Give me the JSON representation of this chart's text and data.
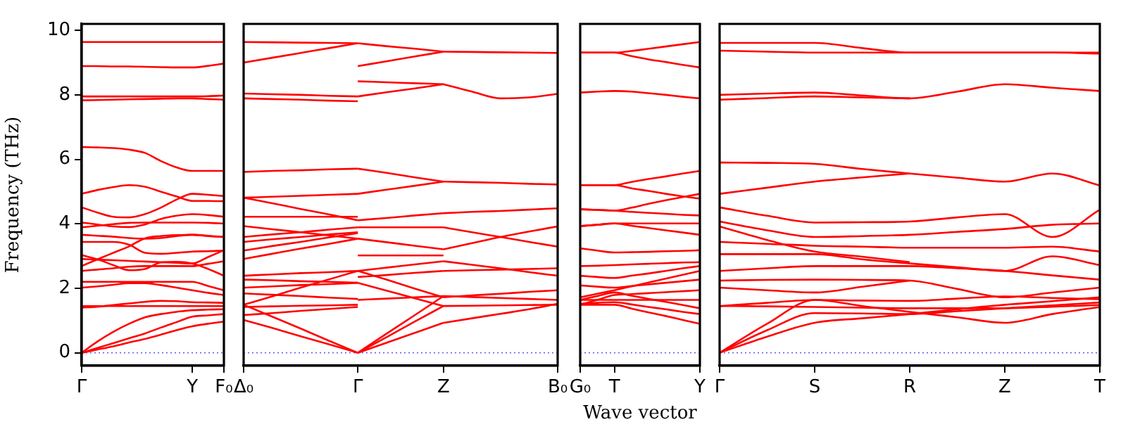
{
  "chart_data": [
    {
      "type": "line",
      "ylabel": "Frequency (THz)",
      "marker": "none",
      "categories": [
        "Γ",
        null,
        null,
        null,
        null,
        null,
        null,
        "Y",
        null,
        "F₀"
      ],
      "ylim": [
        -0.4,
        10.2
      ],
      "yticks": [
        0,
        2,
        4,
        6,
        8,
        10
      ],
      "ref_lines": [
        {
          "axis": "y",
          "value": 0,
          "color": "#6666ff",
          "line_style": "dotted"
        }
      ],
      "series": [
        {
          "color": "#ff0000",
          "values": [
            9.64,
            9.64,
            9.64,
            9.64,
            9.64,
            9.64,
            9.64,
            9.64,
            9.64,
            9.64
          ]
        },
        {
          "color": "#ff0000",
          "values": [
            8.89,
            8.89,
            8.88,
            8.88,
            8.87,
            8.86,
            8.85,
            8.85,
            8.9,
            8.97
          ]
        },
        {
          "color": "#ff0000",
          "values": [
            7.95,
            7.95,
            7.95,
            7.95,
            7.95,
            7.95,
            7.95,
            7.95,
            7.96,
            7.98
          ]
        },
        {
          "color": "#ff0000",
          "values": [
            7.83,
            7.84,
            7.85,
            7.86,
            7.87,
            7.88,
            7.89,
            7.89,
            7.87,
            7.85
          ]
        },
        {
          "color": "#ff0000",
          "values": [
            6.38,
            6.37,
            6.35,
            6.3,
            6.2,
            5.95,
            5.75,
            5.64,
            5.64,
            5.64
          ]
        },
        {
          "color": "#ff0000",
          "values": [
            4.93,
            5.05,
            5.14,
            5.2,
            5.15,
            5.0,
            4.85,
            4.71,
            4.71,
            4.7
          ]
        },
        {
          "color": "#ff0000",
          "values": [
            4.51,
            4.35,
            4.22,
            4.2,
            4.3,
            4.5,
            4.75,
            4.93,
            4.9,
            4.86
          ]
        },
        {
          "color": "#ff0000",
          "values": [
            4.04,
            3.98,
            3.92,
            3.9,
            3.98,
            4.15,
            4.25,
            4.3,
            4.27,
            4.22
          ]
        },
        {
          "color": "#ff0000",
          "values": [
            3.89,
            3.94,
            3.99,
            4.03,
            4.04,
            4.04,
            4.04,
            4.04,
            4.03,
            4.01
          ]
        },
        {
          "color": "#ff0000",
          "values": [
            3.66,
            3.63,
            3.6,
            3.56,
            3.54,
            3.56,
            3.62,
            3.66,
            3.63,
            3.59
          ]
        },
        {
          "color": "#ff0000",
          "values": [
            3.44,
            3.44,
            3.44,
            3.35,
            3.1,
            3.07,
            3.1,
            3.14,
            3.15,
            3.17
          ]
        },
        {
          "color": "#ff0000",
          "values": [
            3.03,
            2.9,
            2.72,
            2.56,
            2.6,
            2.8,
            2.82,
            2.77,
            2.6,
            2.39
          ]
        },
        {
          "color": "#ff0000",
          "values": [
            2.91,
            2.89,
            2.87,
            2.85,
            2.83,
            2.81,
            2.79,
            2.77,
            2.97,
            3.18
          ]
        },
        {
          "color": "#ff0000",
          "values": [
            2.69,
            2.9,
            3.1,
            3.3,
            3.55,
            3.62,
            3.65,
            3.66,
            3.62,
            3.59
          ]
        },
        {
          "color": "#ff0000",
          "values": [
            2.54,
            2.58,
            2.62,
            2.67,
            2.69,
            2.69,
            2.69,
            2.69,
            2.76,
            2.84
          ]
        },
        {
          "color": "#ff0000",
          "values": [
            2.2,
            2.2,
            2.2,
            2.2,
            2.2,
            2.2,
            2.2,
            2.2,
            2.07,
            1.94
          ]
        },
        {
          "color": "#ff0000",
          "values": [
            2.02,
            2.06,
            2.11,
            2.16,
            2.16,
            2.1,
            2.02,
            1.94,
            1.86,
            1.79
          ]
        },
        {
          "color": "#ff0000",
          "values": [
            1.45,
            1.45,
            1.45,
            1.45,
            1.45,
            1.45,
            1.45,
            1.45,
            1.45,
            1.45
          ]
        },
        {
          "color": "#ff0000",
          "values": [
            1.4,
            1.43,
            1.48,
            1.53,
            1.58,
            1.61,
            1.6,
            1.57,
            1.56,
            1.55
          ]
        },
        {
          "color": "#ff0000",
          "values": [
            0,
            0.35,
            0.65,
            0.9,
            1.1,
            1.2,
            1.27,
            1.32,
            1.34,
            1.35
          ]
        },
        {
          "color": "#ff0000",
          "values": [
            0,
            0.15,
            0.3,
            0.45,
            0.6,
            0.78,
            0.95,
            1.12,
            1.16,
            1.2
          ]
        },
        {
          "color": "#ff0000",
          "values": [
            0,
            0.1,
            0.2,
            0.32,
            0.43,
            0.56,
            0.7,
            0.82,
            0.9,
            0.97
          ]
        }
      ]
    },
    {
      "type": "line",
      "marker": "none",
      "tick_labels": "x",
      "categories": [
        "Δ₀",
        null,
        null,
        null,
        "Γ",
        null,
        null,
        "Z",
        null,
        null,
        null,
        "B₀"
      ],
      "ylim": [
        -0.4,
        10.2
      ],
      "ref_lines": [
        {
          "axis": "y",
          "value": 0,
          "color": "#6666ff",
          "line_style": "dotted"
        }
      ],
      "series": [
        {
          "color": "#ff0000",
          "values": [
            9.64,
            9.63,
            9.62,
            9.61,
            9.6,
            null,
            null,
            null,
            null,
            null,
            null,
            null
          ]
        },
        {
          "color": "#ff0000",
          "values": [
            9.0,
            9.15,
            9.3,
            9.45,
            9.6,
            null,
            null,
            null,
            null,
            null,
            null,
            null
          ]
        },
        {
          "color": "#ff0000",
          "values": [
            8.04,
            8.02,
            8.0,
            7.97,
            7.95,
            null,
            null,
            null,
            null,
            null,
            null,
            null
          ]
        },
        {
          "color": "#ff0000",
          "values": [
            7.89,
            7.87,
            7.85,
            7.82,
            7.8,
            null,
            null,
            null,
            null,
            null,
            null,
            null
          ]
        },
        {
          "color": "#ff0000",
          "values": [
            5.61,
            5.64,
            5.66,
            5.69,
            5.71,
            null,
            null,
            null,
            null,
            null,
            null,
            null
          ]
        },
        {
          "color": "#ff0000",
          "values": [
            4.81,
            4.84,
            4.87,
            4.9,
            4.93,
            null,
            null,
            null,
            null,
            null,
            null,
            null
          ]
        },
        {
          "color": "#ff0000",
          "values": [
            4.81,
            4.64,
            4.46,
            4.29,
            4.11,
            null,
            null,
            null,
            null,
            null,
            null,
            null
          ]
        },
        {
          "color": "#ff0000",
          "values": [
            4.22,
            4.22,
            4.22,
            4.22,
            4.22,
            null,
            null,
            null,
            null,
            null,
            null,
            null
          ]
        },
        {
          "color": "#ff0000",
          "values": [
            3.93,
            3.83,
            3.74,
            3.64,
            3.54,
            null,
            null,
            null,
            null,
            null,
            null,
            null
          ]
        },
        {
          "color": "#ff0000",
          "values": [
            3.59,
            3.67,
            3.74,
            3.82,
            3.89,
            null,
            null,
            null,
            null,
            null,
            null,
            null
          ]
        },
        {
          "color": "#ff0000",
          "values": [
            3.44,
            3.52,
            3.59,
            3.67,
            3.74,
            null,
            null,
            null,
            null,
            null,
            null,
            null
          ]
        },
        {
          "color": "#ff0000",
          "values": [
            3.17,
            3.31,
            3.44,
            3.58,
            3.71,
            null,
            null,
            null,
            null,
            null,
            null,
            null
          ]
        },
        {
          "color": "#ff0000",
          "values": [
            2.91,
            3.07,
            3.23,
            3.38,
            3.54,
            null,
            null,
            null,
            null,
            null,
            null,
            null
          ]
        },
        {
          "color": "#ff0000",
          "values": [
            2.39,
            2.43,
            2.47,
            2.5,
            2.54,
            null,
            null,
            null,
            null,
            null,
            null,
            null
          ]
        },
        {
          "color": "#ff0000",
          "values": [
            2.27,
            2.25,
            2.22,
            2.2,
            2.17,
            null,
            null,
            null,
            null,
            null,
            null,
            null
          ]
        },
        {
          "color": "#ff0000",
          "values": [
            2.02,
            2.06,
            2.1,
            2.13,
            2.17,
            null,
            null,
            null,
            null,
            null,
            null,
            null
          ]
        },
        {
          "color": "#ff0000",
          "values": [
            1.84,
            1.8,
            1.76,
            1.71,
            1.67,
            null,
            null,
            null,
            null,
            null,
            null,
            null
          ]
        },
        {
          "color": "#ff0000",
          "values": [
            1.49,
            1.75,
            2.02,
            2.28,
            2.54,
            null,
            null,
            null,
            null,
            null,
            null,
            null
          ]
        },
        {
          "color": "#ff0000",
          "values": [
            1.42,
            1.44,
            1.46,
            1.47,
            1.49,
            null,
            null,
            null,
            null,
            null,
            null,
            null
          ]
        },
        {
          "color": "#ff0000",
          "values": [
            1.17,
            1.23,
            1.3,
            1.36,
            1.42,
            null,
            null,
            null,
            null,
            null,
            null,
            null
          ]
        },
        {
          "color": "#ff0000",
          "values": [
            1.02,
            0.77,
            0.51,
            0.26,
            0,
            null,
            null,
            null,
            null,
            null,
            null,
            null
          ]
        },
        {
          "color": "#ff0000",
          "values": [
            1.49,
            1.12,
            0.75,
            0.37,
            0,
            null,
            null,
            null,
            null,
            null,
            null,
            null
          ]
        },
        {
          "color": "#ff0000",
          "values": [
            null,
            null,
            null,
            null,
            9.6,
            9.51,
            9.43,
            9.34,
            null,
            null,
            null,
            null
          ]
        },
        {
          "color": "#ff0000",
          "values": [
            null,
            null,
            null,
            null,
            8.89,
            9.04,
            9.19,
            9.34,
            null,
            null,
            null,
            null
          ]
        },
        {
          "color": "#ff0000",
          "values": [
            null,
            null,
            null,
            null,
            8.42,
            8.39,
            8.36,
            8.33,
            null,
            null,
            null,
            null
          ]
        },
        {
          "color": "#ff0000",
          "values": [
            null,
            null,
            null,
            null,
            7.95,
            8.08,
            8.2,
            8.33,
            null,
            null,
            null,
            null
          ]
        },
        {
          "color": "#ff0000",
          "values": [
            null,
            null,
            null,
            null,
            5.71,
            5.58,
            5.44,
            5.31,
            null,
            null,
            null,
            null
          ]
        },
        {
          "color": "#ff0000",
          "values": [
            null,
            null,
            null,
            null,
            4.93,
            5.06,
            5.18,
            5.31,
            null,
            null,
            null,
            null
          ]
        },
        {
          "color": "#ff0000",
          "values": [
            null,
            null,
            null,
            null,
            4.11,
            4.18,
            4.26,
            4.33,
            null,
            null,
            null,
            null
          ]
        },
        {
          "color": "#ff0000",
          "values": [
            null,
            null,
            null,
            null,
            3.89,
            3.89,
            3.89,
            3.89,
            null,
            null,
            null,
            null
          ]
        },
        {
          "color": "#ff0000",
          "values": [
            null,
            null,
            null,
            null,
            3.54,
            3.43,
            3.32,
            3.21,
            null,
            null,
            null,
            null
          ]
        },
        {
          "color": "#ff0000",
          "values": [
            null,
            null,
            null,
            null,
            3.02,
            3.02,
            3.02,
            3.02,
            null,
            null,
            null,
            null
          ]
        },
        {
          "color": "#ff0000",
          "values": [
            null,
            null,
            null,
            null,
            2.54,
            2.64,
            2.74,
            2.84,
            null,
            null,
            null,
            null
          ]
        },
        {
          "color": "#ff0000",
          "values": [
            null,
            null,
            null,
            null,
            2.35,
            2.41,
            2.48,
            2.54,
            null,
            null,
            null,
            null
          ]
        },
        {
          "color": "#ff0000",
          "values": [
            null,
            null,
            null,
            null,
            1.64,
            1.68,
            1.72,
            1.76,
            null,
            null,
            null,
            null
          ]
        },
        {
          "color": "#ff0000",
          "values": [
            null,
            null,
            null,
            null,
            0,
            0.59,
            1.17,
            1.76,
            null,
            null,
            null,
            null
          ]
        },
        {
          "color": "#ff0000",
          "values": [
            null,
            null,
            null,
            null,
            0,
            0.48,
            0.97,
            1.45,
            null,
            null,
            null,
            null
          ]
        },
        {
          "color": "#ff0000",
          "values": [
            null,
            null,
            null,
            null,
            0,
            0.31,
            0.62,
            0.93,
            null,
            null,
            null,
            null
          ]
        },
        {
          "color": "#ff0000",
          "values": [
            null,
            null,
            null,
            null,
            2.54,
            2.27,
            1.99,
            1.72,
            null,
            null,
            null,
            null
          ]
        },
        {
          "color": "#ff0000",
          "values": [
            null,
            null,
            null,
            null,
            2.17,
            1.93,
            1.69,
            1.45,
            null,
            null,
            null,
            null
          ]
        },
        {
          "color": "#ff0000",
          "values": [
            null,
            null,
            null,
            null,
            null,
            null,
            null,
            9.34,
            9.33,
            9.32,
            9.31,
            9.3
          ]
        },
        {
          "color": "#ff0000",
          "values": [
            null,
            null,
            null,
            null,
            null,
            null,
            null,
            8.33,
            8.1,
            7.89,
            7.92,
            8.03
          ]
        },
        {
          "color": "#ff0000",
          "values": [
            null,
            null,
            null,
            null,
            null,
            null,
            null,
            5.31,
            5.29,
            5.27,
            5.24,
            5.22
          ]
        },
        {
          "color": "#ff0000",
          "values": [
            null,
            null,
            null,
            null,
            null,
            null,
            null,
            4.33,
            4.37,
            4.4,
            4.44,
            4.48
          ]
        },
        {
          "color": "#ff0000",
          "values": [
            null,
            null,
            null,
            null,
            null,
            null,
            null,
            3.89,
            3.74,
            3.59,
            3.44,
            3.29
          ]
        },
        {
          "color": "#ff0000",
          "values": [
            null,
            null,
            null,
            null,
            null,
            null,
            null,
            3.21,
            3.4,
            3.59,
            3.76,
            3.92
          ]
        },
        {
          "color": "#ff0000",
          "values": [
            null,
            null,
            null,
            null,
            null,
            null,
            null,
            2.84,
            2.73,
            2.62,
            2.5,
            2.39
          ]
        },
        {
          "color": "#ff0000",
          "values": [
            null,
            null,
            null,
            null,
            null,
            null,
            null,
            2.54,
            2.56,
            2.58,
            2.6,
            2.62
          ]
        },
        {
          "color": "#ff0000",
          "values": [
            null,
            null,
            null,
            null,
            null,
            null,
            null,
            1.76,
            1.73,
            1.7,
            1.67,
            1.64
          ]
        },
        {
          "color": "#ff0000",
          "values": [
            null,
            null,
            null,
            null,
            null,
            null,
            null,
            1.45,
            1.46,
            1.47,
            1.48,
            1.49
          ]
        },
        {
          "color": "#ff0000",
          "values": [
            null,
            null,
            null,
            null,
            null,
            null,
            null,
            0.93,
            1.07,
            1.21,
            1.35,
            1.52
          ]
        },
        {
          "color": "#ff0000",
          "values": [
            null,
            null,
            null,
            null,
            null,
            null,
            null,
            1.72,
            1.78,
            1.83,
            1.89,
            1.94
          ]
        }
      ]
    },
    {
      "type": "line",
      "marker": "none",
      "tick_labels": "x",
      "xlabel": "Wave vector",
      "categories": [
        "G₀",
        null,
        "T",
        null,
        null,
        null,
        null,
        "Y"
      ],
      "ylim": [
        -0.4,
        10.2
      ],
      "ref_lines": [
        {
          "axis": "y",
          "value": 0,
          "color": "#6666ff",
          "line_style": "dotted"
        }
      ],
      "series": [
        {
          "color": "#ff0000",
          "values": [
            9.31,
            9.31,
            9.31,
            9.36,
            9.43,
            9.5,
            9.57,
            9.64
          ]
        },
        {
          "color": "#ff0000",
          "values": [
            9.31,
            9.31,
            9.31,
            9.2,
            9.1,
            9.02,
            8.93,
            8.85
          ]
        },
        {
          "color": "#ff0000",
          "values": [
            8.07,
            8.1,
            8.12,
            8.1,
            8.05,
            8.0,
            7.94,
            7.89
          ]
        },
        {
          "color": "#ff0000",
          "values": [
            5.2,
            5.2,
            5.2,
            5.3,
            5.39,
            5.47,
            5.56,
            5.64
          ]
        },
        {
          "color": "#ff0000",
          "values": [
            5.2,
            5.2,
            5.2,
            5.1,
            5.02,
            4.93,
            4.85,
            4.78
          ]
        },
        {
          "color": "#ff0000",
          "values": [
            4.45,
            4.43,
            4.41,
            4.5,
            4.62,
            4.73,
            4.83,
            4.93
          ]
        },
        {
          "color": "#ff0000",
          "values": [
            4.45,
            4.43,
            4.41,
            4.37,
            4.34,
            4.31,
            4.28,
            4.26
          ]
        },
        {
          "color": "#ff0000",
          "values": [
            3.93,
            3.97,
            4.01,
            3.94,
            3.87,
            3.8,
            3.73,
            3.66
          ]
        },
        {
          "color": "#ff0000",
          "values": [
            3.93,
            3.97,
            4.01,
            4.01,
            4.01,
            4.01,
            4.01,
            4.01
          ]
        },
        {
          "color": "#ff0000",
          "values": [
            3.24,
            3.17,
            3.11,
            3.12,
            3.13,
            3.15,
            3.16,
            3.18
          ]
        },
        {
          "color": "#ff0000",
          "values": [
            2.69,
            2.7,
            2.72,
            2.74,
            2.76,
            2.78,
            2.8,
            2.81
          ]
        },
        {
          "color": "#ff0000",
          "values": [
            2.39,
            2.35,
            2.32,
            2.39,
            2.46,
            2.54,
            2.62,
            2.69
          ]
        },
        {
          "color": "#ff0000",
          "values": [
            2.09,
            2.05,
            2.02,
            2.07,
            2.12,
            2.17,
            2.22,
            2.27
          ]
        },
        {
          "color": "#ff0000",
          "values": [
            1.72,
            1.83,
            1.94,
            2.06,
            2.18,
            2.3,
            2.42,
            2.54
          ]
        },
        {
          "color": "#ff0000",
          "values": [
            1.64,
            1.76,
            1.87,
            1.77,
            1.67,
            1.58,
            1.48,
            1.38
          ]
        },
        {
          "color": "#ff0000",
          "values": [
            1.52,
            1.55,
            1.57,
            1.5,
            1.42,
            1.35,
            1.27,
            1.2
          ]
        },
        {
          "color": "#ff0000",
          "values": [
            1.49,
            1.49,
            1.49,
            1.37,
            1.25,
            1.14,
            1.02,
            0.9
          ]
        },
        {
          "color": "#ff0000",
          "values": [
            1.49,
            1.64,
            1.79,
            1.82,
            1.85,
            1.88,
            1.91,
            1.94
          ]
        },
        {
          "color": "#ff0000",
          "values": [
            1.64,
            1.64,
            1.64,
            1.64,
            1.64,
            1.64,
            1.64,
            1.64
          ]
        }
      ]
    },
    {
      "type": "line",
      "marker": "none",
      "tick_labels": "x",
      "categories": [
        "Γ",
        null,
        "S",
        null,
        "R",
        null,
        "Z",
        null,
        "T"
      ],
      "ylim": [
        -0.4,
        10.2
      ],
      "ref_lines": [
        {
          "axis": "y",
          "value": 0,
          "color": "#6666ff",
          "line_style": "dotted"
        }
      ],
      "series": [
        {
          "color": "#ff0000",
          "values": [
            9.61,
            9.61,
            9.61,
            9.45,
            9.31,
            9.31,
            9.31,
            9.31,
            9.31
          ]
        },
        {
          "color": "#ff0000",
          "values": [
            9.37,
            9.34,
            9.31,
            9.31,
            9.31,
            9.31,
            9.31,
            9.31,
            9.28
          ]
        },
        {
          "color": "#ff0000",
          "values": [
            8.0,
            8.04,
            8.07,
            7.98,
            7.89,
            8.1,
            8.33,
            8.22,
            8.12
          ]
        },
        {
          "color": "#ff0000",
          "values": [
            7.85,
            7.9,
            7.95,
            7.92,
            7.89,
            null,
            null,
            null,
            null
          ]
        },
        {
          "color": "#ff0000",
          "values": [
            5.9,
            5.89,
            5.86,
            5.7,
            5.56,
            5.43,
            5.31,
            5.56,
            5.19
          ]
        },
        {
          "color": "#ff0000",
          "values": [
            4.93,
            5.12,
            5.31,
            5.44,
            5.56,
            null,
            null,
            null,
            null
          ]
        },
        {
          "color": "#ff0000",
          "values": [
            4.51,
            4.25,
            4.04,
            4.05,
            4.07,
            4.2,
            4.3,
            3.59,
            4.44
          ]
        },
        {
          "color": "#ff0000",
          "values": [
            4.07,
            3.8,
            3.59,
            3.62,
            3.66,
            3.75,
            3.84,
            3.97,
            4.01
          ]
        },
        {
          "color": "#ff0000",
          "values": [
            3.92,
            3.5,
            3.14,
            2.98,
            2.81,
            null,
            null,
            null,
            null
          ]
        },
        {
          "color": "#ff0000",
          "values": [
            3.44,
            3.38,
            3.32,
            3.29,
            3.26,
            3.26,
            3.26,
            3.29,
            3.14
          ]
        },
        {
          "color": "#ff0000",
          "values": [
            3.06,
            3.06,
            3.06,
            2.9,
            2.77,
            2.65,
            2.54,
            2.99,
            2.72
          ]
        },
        {
          "color": "#ff0000",
          "values": [
            2.54,
            2.62,
            2.69,
            2.69,
            2.69,
            2.62,
            2.54,
            2.4,
            2.27
          ]
        },
        {
          "color": "#ff0000",
          "values": [
            2.24,
            2.26,
            2.27,
            2.26,
            2.24,
            1.98,
            1.72,
            1.87,
            2.02
          ]
        },
        {
          "color": "#ff0000",
          "values": [
            2.02,
            1.94,
            1.87,
            2.05,
            2.24,
            null,
            null,
            null,
            null
          ]
        },
        {
          "color": "#ff0000",
          "values": [
            1.45,
            1.55,
            1.64,
            1.62,
            1.61,
            1.68,
            1.75,
            1.7,
            1.66
          ]
        },
        {
          "color": "#ff0000",
          "values": [
            1.45,
            1.44,
            1.42,
            1.4,
            1.38,
            1.38,
            1.38,
            1.43,
            1.48
          ]
        },
        {
          "color": "#ff0000",
          "values": [
            0,
            0.9,
            1.64,
            1.45,
            1.27,
            1.1,
            0.93,
            1.2,
            1.42
          ]
        },
        {
          "color": "#ff0000",
          "values": [
            0,
            0.7,
            1.23,
            1.22,
            1.2,
            1.29,
            1.38,
            1.47,
            1.56
          ]
        },
        {
          "color": "#ff0000",
          "values": [
            0,
            0.5,
            0.93,
            1.07,
            1.2,
            1.35,
            1.49,
            1.6,
            1.72
          ]
        }
      ]
    }
  ]
}
